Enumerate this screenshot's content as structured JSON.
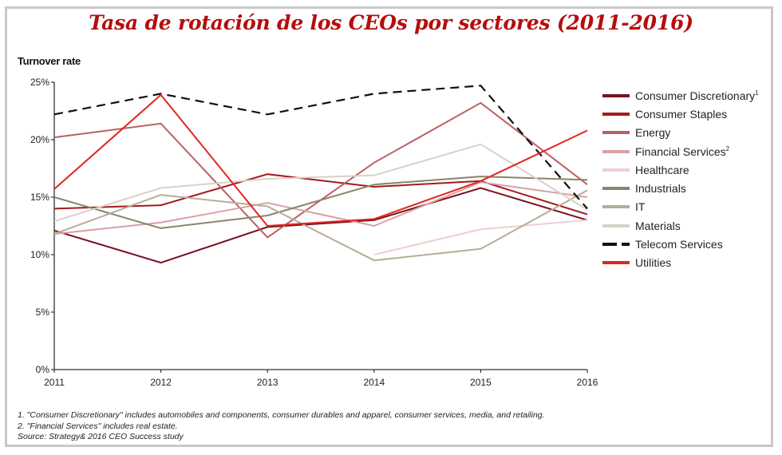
{
  "title": "Tasa de rotación de los CEOs por sectores (2011-2016)",
  "footnotes": [
    "1. \"Consumer Discretionary\" includes automobiles and components, consumer durables and apparel, consumer services, media, and retailing.",
    "2. \"Financial Services\" includes real estate.",
    "Source: Strategy& 2016 CEO Success study"
  ],
  "chart_data": {
    "type": "line",
    "title": "Tasa de rotación de los CEOs por sectores (2011-2016)",
    "xlabel": "",
    "ylabel": "Turnover rate",
    "x": [
      "2011",
      "2012",
      "2013",
      "2014",
      "2015",
      "2016"
    ],
    "ylim": [
      0,
      25
    ],
    "yticks": [
      "0%",
      "5%",
      "10%",
      "15%",
      "20%",
      "25%"
    ],
    "ytick_values": [
      0,
      5,
      10,
      15,
      20,
      25
    ],
    "grid": false,
    "legend_position": "right",
    "series": [
      {
        "name": "Consumer Discretionary",
        "sup": "1",
        "color": "#7a1020",
        "dash": false,
        "values": [
          12.1,
          9.3,
          12.4,
          13.0,
          15.8,
          13.0
        ]
      },
      {
        "name": "Consumer Staples",
        "sup": "",
        "color": "#a31a1e",
        "dash": false,
        "values": [
          14.0,
          14.3,
          17.0,
          15.9,
          16.4,
          13.5
        ]
      },
      {
        "name": "Energy",
        "sup": "",
        "color": "#bd5f63",
        "dash": false,
        "values": [
          20.2,
          21.4,
          11.5,
          18.0,
          23.2,
          16.1
        ]
      },
      {
        "name": "Financial Services",
        "sup": "2",
        "color": "#d9a0a3",
        "dash": false,
        "values": [
          11.8,
          12.8,
          14.5,
          12.5,
          16.3,
          15.0
        ]
      },
      {
        "name": "Healthcare",
        "sup": "",
        "color": "#edcfd2",
        "dash": false,
        "values": [
          null,
          null,
          null,
          10.0,
          12.2,
          13.0
        ]
      },
      {
        "name": "Industrials",
        "sup": "",
        "color": "#8a8468",
        "dash": false,
        "values": [
          15.0,
          12.3,
          13.4,
          16.1,
          16.8,
          16.5
        ]
      },
      {
        "name": "IT",
        "sup": "",
        "color": "#b4ae98",
        "dash": false,
        "values": [
          11.8,
          15.2,
          14.2,
          9.5,
          10.5,
          15.6
        ]
      },
      {
        "name": "Materials",
        "sup": "",
        "color": "#d6d3c6",
        "dash": false,
        "values": [
          12.9,
          15.8,
          16.6,
          16.9,
          19.6,
          13.9
        ]
      },
      {
        "name": "Telecom Services",
        "sup": "",
        "color": "#111111",
        "dash": true,
        "values": [
          22.2,
          24.0,
          22.2,
          24.0,
          24.7,
          14.0
        ]
      },
      {
        "name": "Utilities",
        "sup": "",
        "color": "#e0261f",
        "dash": false,
        "values": [
          15.7,
          23.9,
          12.5,
          13.1,
          16.4,
          20.8
        ]
      }
    ]
  }
}
